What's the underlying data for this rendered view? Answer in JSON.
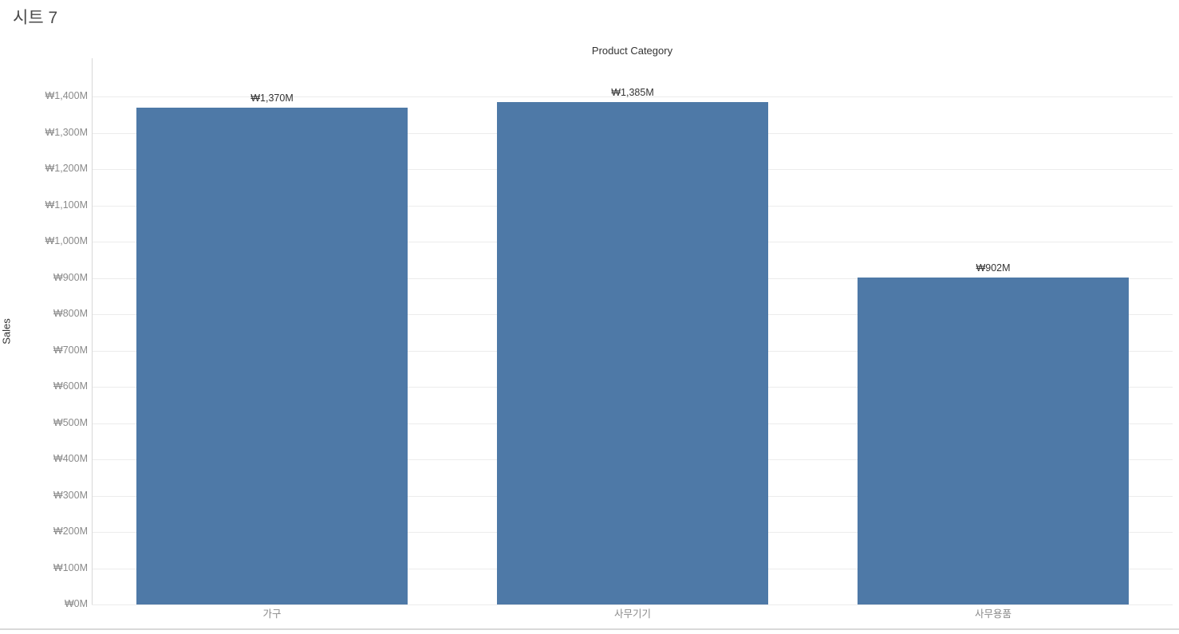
{
  "sheet": {
    "title": "시트 7"
  },
  "chart_data": {
    "type": "bar",
    "title": "Product Category",
    "xlabel": "Product Category",
    "ylabel": "Sales",
    "categories": [
      "가구",
      "사무기기",
      "사무용품"
    ],
    "values": [
      1370,
      1385,
      902
    ],
    "bar_labels": [
      "₩1,370M",
      "₩1,385M",
      "₩902M"
    ],
    "y_ticks": [
      "₩0M",
      "₩100M",
      "₩200M",
      "₩300M",
      "₩400M",
      "₩500M",
      "₩600M",
      "₩700M",
      "₩800M",
      "₩900M",
      "₩1,000M",
      "₩1,100M",
      "₩1,200M",
      "₩1,300M",
      "₩1,400M"
    ],
    "ylim": [
      0,
      1400
    ],
    "y_tick_step": 100,
    "unit": "M",
    "currency": "₩",
    "grid": true,
    "legend": "none",
    "bar_color": "#4e79a7",
    "gridline_color": "#ececec",
    "axis_line_color": "#d8d8d8",
    "tick_label_color": "#8a8a8a",
    "label_color": "#333333"
  }
}
